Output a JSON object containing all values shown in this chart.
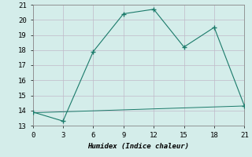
{
  "xlabel": "Humidex (Indice chaleur)",
  "ylabel": "",
  "background_color": "#d4edea",
  "line_color": "#1a7a6a",
  "grid_color": "#c0b8c8",
  "xlim": [
    0,
    21
  ],
  "ylim": [
    13,
    21
  ],
  "xticks": [
    0,
    3,
    6,
    9,
    12,
    15,
    18,
    21
  ],
  "yticks": [
    13,
    14,
    15,
    16,
    17,
    18,
    19,
    20,
    21
  ],
  "series1_x": [
    0,
    3,
    6,
    9,
    12,
    15,
    18,
    21
  ],
  "series1_y": [
    13.9,
    13.3,
    17.9,
    20.4,
    20.7,
    18.2,
    19.5,
    14.3
  ],
  "series2_x": [
    0,
    21
  ],
  "series2_y": [
    13.85,
    14.3
  ],
  "marker": "+"
}
